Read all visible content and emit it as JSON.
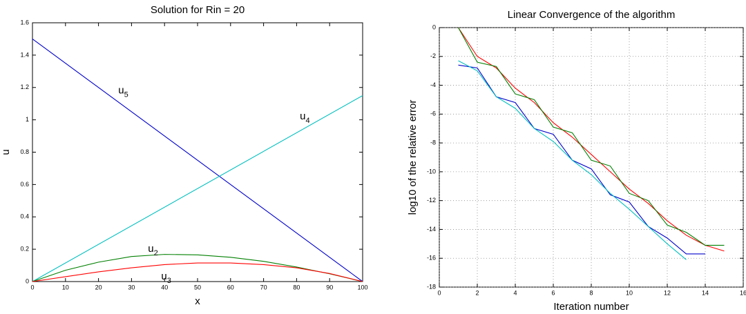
{
  "chart_data": [
    {
      "type": "line",
      "title": "Solution for Rin = 20",
      "xlabel": "x",
      "ylabel": "u",
      "xlim": [
        0,
        100
      ],
      "xticks": [
        0,
        10,
        20,
        30,
        40,
        50,
        60,
        70,
        80,
        90,
        100
      ],
      "ylim": [
        0,
        1.6
      ],
      "yticks": [
        0,
        0.2,
        0.4,
        0.6,
        0.8,
        1,
        1.2,
        1.4,
        1.6
      ],
      "grid": false,
      "series": [
        {
          "color": "#0000cc",
          "x": [
            0,
            100
          ],
          "values": [
            1.5,
            0
          ]
        },
        {
          "color": "#00bfbf",
          "x": [
            0,
            100
          ],
          "values": [
            0,
            1.15
          ]
        },
        {
          "color": "#007f00",
          "x": [
            0,
            10,
            20,
            30,
            40,
            50,
            60,
            70,
            80,
            90,
            100
          ],
          "values": [
            0,
            0.07,
            0.12,
            0.155,
            0.168,
            0.165,
            0.15,
            0.125,
            0.09,
            0.048,
            0
          ]
        },
        {
          "color": "#ff0000",
          "x": [
            0,
            10,
            20,
            30,
            40,
            50,
            60,
            70,
            80,
            90,
            100
          ],
          "values": [
            0,
            0.03,
            0.06,
            0.085,
            0.105,
            0.115,
            0.115,
            0.105,
            0.085,
            0.05,
            0
          ]
        }
      ],
      "annotations": [
        {
          "text": "u",
          "sub": "5",
          "x": 26,
          "y": 1.18
        },
        {
          "text": "u",
          "sub": "4",
          "x": 81,
          "y": 1.02
        },
        {
          "text": "u",
          "sub": "2",
          "x": 35,
          "y": 0.2
        },
        {
          "text": "u",
          "sub": "3",
          "x": 39,
          "y": 0.03
        }
      ]
    },
    {
      "type": "line",
      "title": "Linear Convergence of the algorithm",
      "xlabel": "Iteration number",
      "ylabel": "log10 of the relative error",
      "xlim": [
        0,
        16
      ],
      "xticks": [
        0,
        2,
        4,
        6,
        8,
        10,
        12,
        14,
        16
      ],
      "ylim": [
        -18,
        0
      ],
      "yticks": [
        -18,
        -16,
        -14,
        -12,
        -10,
        -8,
        -6,
        -4,
        -2,
        0
      ],
      "grid": true,
      "series": [
        {
          "color": "#ff0000",
          "x": [
            1,
            2,
            3,
            4,
            5,
            6,
            7,
            8,
            9,
            10,
            11,
            12,
            13,
            14,
            15
          ],
          "values": [
            0,
            -2,
            -2.8,
            -4.2,
            -5.2,
            -6.6,
            -7.6,
            -8.8,
            -10,
            -11.2,
            -12.2,
            -13.4,
            -14.4,
            -15.1,
            -15.5
          ]
        },
        {
          "color": "#007f00",
          "x": [
            1,
            2,
            3,
            4,
            5,
            6,
            7,
            8,
            9,
            10,
            11,
            12,
            13,
            14,
            15
          ],
          "values": [
            0,
            -2.4,
            -2.7,
            -4.6,
            -5,
            -6.9,
            -7.3,
            -9.2,
            -9.6,
            -11.5,
            -12,
            -13.7,
            -14.2,
            -15.1,
            -15.1
          ]
        },
        {
          "color": "#0000cc",
          "x": [
            1,
            2,
            3,
            4,
            5,
            6,
            7,
            8,
            9,
            10,
            11,
            12,
            13,
            14
          ],
          "values": [
            -2.6,
            -2.8,
            -4.8,
            -5.2,
            -7,
            -7.4,
            -9.2,
            -9.8,
            -11.6,
            -12.1,
            -13.8,
            -14.6,
            -15.7,
            -15.7
          ]
        },
        {
          "color": "#00bfbf",
          "x": [
            1,
            2,
            3,
            4,
            5,
            6,
            7,
            8,
            9,
            10,
            11,
            12,
            13
          ],
          "values": [
            -2.3,
            -3,
            -4.8,
            -5.6,
            -7,
            -7.9,
            -9.2,
            -10.2,
            -11.5,
            -12.6,
            -13.8,
            -15,
            -16.1
          ]
        }
      ]
    }
  ]
}
